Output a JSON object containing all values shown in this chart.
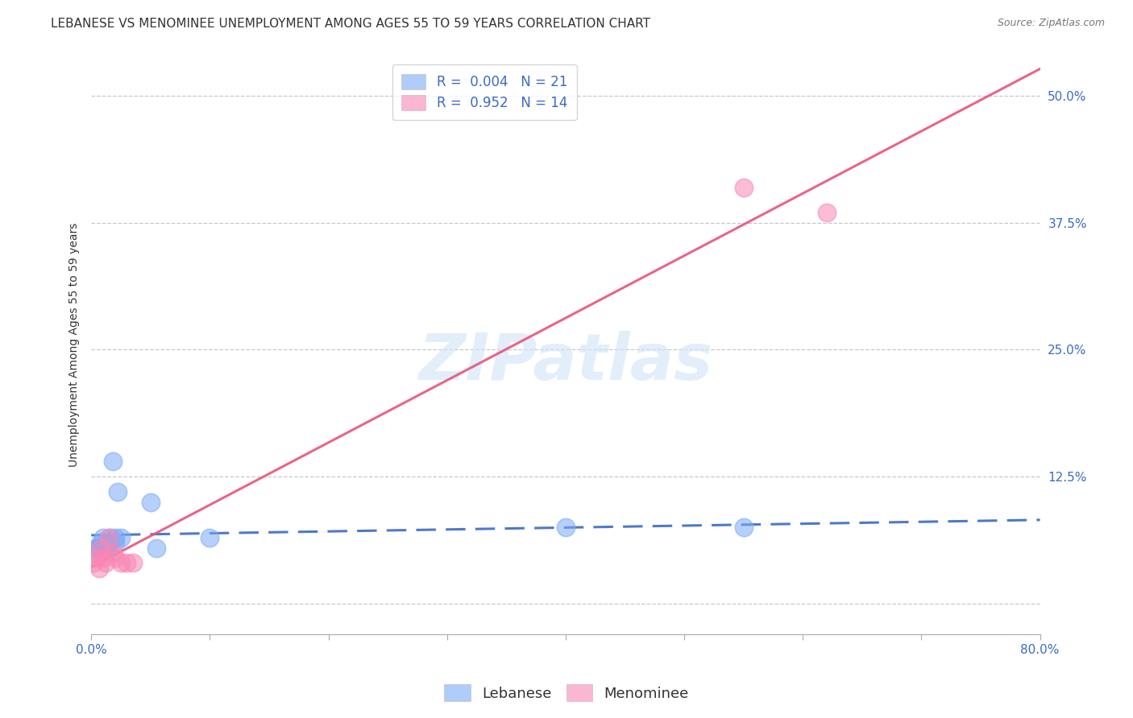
{
  "title": "LEBANESE VS MENOMINEE UNEMPLOYMENT AMONG AGES 55 TO 59 YEARS CORRELATION CHART",
  "source": "Source: ZipAtlas.com",
  "ylabel": "Unemployment Among Ages 55 to 59 years",
  "xlim": [
    0.0,
    0.8
  ],
  "ylim": [
    -0.03,
    0.54
  ],
  "xticks": [
    0.0,
    0.1,
    0.2,
    0.3,
    0.4,
    0.5,
    0.6,
    0.7,
    0.8
  ],
  "xticklabels": [
    "0.0%",
    "",
    "",
    "",
    "",
    "",
    "",
    "",
    "80.0%"
  ],
  "yticks": [
    0.0,
    0.125,
    0.25,
    0.375,
    0.5
  ],
  "yticklabels": [
    "",
    "12.5%",
    "25.0%",
    "37.5%",
    "50.0%"
  ],
  "grid_color": "#c8c8c8",
  "background_color": "#ffffff",
  "watermark": "ZIPatlas",
  "lebanese_color": "#7baaf7",
  "menominee_color": "#f987b5",
  "lebanese_R": 0.004,
  "lebanese_N": 21,
  "menominee_R": 0.952,
  "menominee_N": 14,
  "lebanese_x": [
    0.002,
    0.004,
    0.005,
    0.006,
    0.008,
    0.01,
    0.01,
    0.012,
    0.013,
    0.015,
    0.016,
    0.018,
    0.02,
    0.02,
    0.022,
    0.025,
    0.05,
    0.055,
    0.1,
    0.4,
    0.55
  ],
  "lebanese_y": [
    0.05,
    0.055,
    0.055,
    0.055,
    0.06,
    0.055,
    0.065,
    0.06,
    0.055,
    0.055,
    0.065,
    0.14,
    0.06,
    0.065,
    0.11,
    0.065,
    0.1,
    0.055,
    0.065,
    0.075,
    0.075
  ],
  "menominee_x": [
    0.002,
    0.005,
    0.007,
    0.008,
    0.01,
    0.012,
    0.015,
    0.018,
    0.02,
    0.025,
    0.03,
    0.035,
    0.55,
    0.62
  ],
  "menominee_y": [
    0.04,
    0.045,
    0.035,
    0.055,
    0.045,
    0.04,
    0.065,
    0.05,
    0.045,
    0.04,
    0.04,
    0.04,
    0.41,
    0.385
  ],
  "lebanese_line_color": "#3a6bc4",
  "menominee_line_color": "#e8547a",
  "title_fontsize": 11,
  "axis_label_fontsize": 10,
  "tick_fontsize": 11,
  "legend_fontsize": 12,
  "source_fontsize": 9
}
